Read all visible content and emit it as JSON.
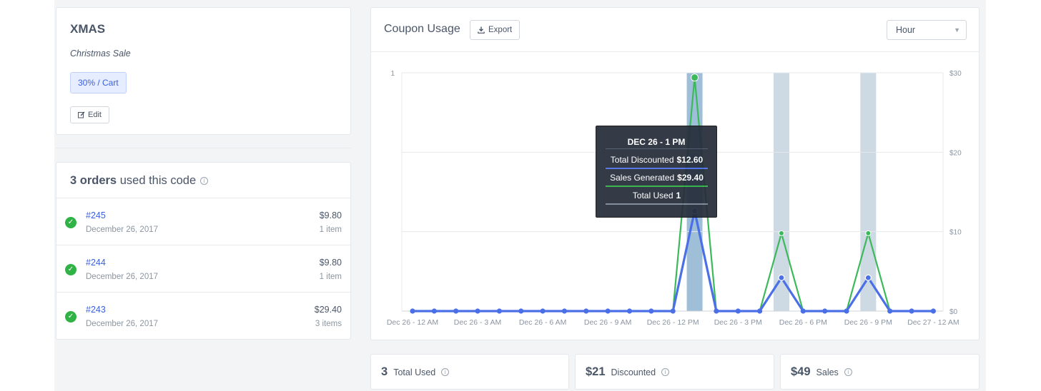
{
  "coupon": {
    "code": "XMAS",
    "description": "Christmas Sale",
    "badge": "30% / Cart",
    "edit_label": "Edit"
  },
  "orders": {
    "count": "3 orders",
    "header_suffix": "used this code",
    "items": [
      {
        "id": "#245",
        "date": "December 26, 2017",
        "amount": "$9.80",
        "items": "1 item"
      },
      {
        "id": "#244",
        "date": "December 26, 2017",
        "amount": "$9.80",
        "items": "1 item"
      },
      {
        "id": "#243",
        "date": "December 26, 2017",
        "amount": "$29.40",
        "items": "3 items"
      }
    ]
  },
  "usage": {
    "title": "Coupon Usage",
    "export_label": "Export",
    "interval": "Hour"
  },
  "tooltip": {
    "title": "DEC 26 - 1 PM",
    "rows": [
      {
        "label": "Total Discounted",
        "value": "$12.60"
      },
      {
        "label": "Sales Generated",
        "value": "$29.40"
      },
      {
        "label": "Total Used",
        "value": "1"
      }
    ]
  },
  "stats": [
    {
      "value": "3",
      "label": "Total Used"
    },
    {
      "value": "$21",
      "label": "Discounted"
    },
    {
      "value": "$49",
      "label": "Sales"
    }
  ],
  "colors": {
    "discounted": "#4b6fe6",
    "sales": "#3cb95a",
    "used_bar": "#cdd9e3",
    "used_bar_active": "#9fbfd9"
  },
  "chart_data": {
    "type": "line",
    "x_tick_labels": [
      "Dec 26 - 12 AM",
      "Dec 26 - 3 AM",
      "Dec 26 - 6 AM",
      "Dec 26 - 9 AM",
      "Dec 26 - 12 PM",
      "Dec 26 - 3 PM",
      "Dec 26 - 6 PM",
      "Dec 26 - 9 PM",
      "Dec 27 - 12 AM"
    ],
    "left_axis": {
      "ticks": [
        "1"
      ],
      "range": [
        0,
        1
      ]
    },
    "right_axis": {
      "ticks": [
        "$30",
        "$20",
        "$10",
        "$0"
      ],
      "range": [
        0,
        30
      ]
    },
    "hours": 25,
    "series": [
      {
        "name": "Total Discounted",
        "axis": "right",
        "values": [
          0,
          0,
          0,
          0,
          0,
          0,
          0,
          0,
          0,
          0,
          0,
          0,
          0,
          12.6,
          0,
          0,
          0,
          4.2,
          0,
          0,
          0,
          4.2,
          0,
          0,
          0
        ]
      },
      {
        "name": "Sales Generated",
        "axis": "right",
        "values": [
          0,
          0,
          0,
          0,
          0,
          0,
          0,
          0,
          0,
          0,
          0,
          0,
          0,
          29.4,
          0,
          0,
          0,
          9.8,
          0,
          0,
          0,
          9.8,
          0,
          0,
          0
        ]
      },
      {
        "name": "Total Used",
        "axis": "left",
        "type": "bar",
        "values": [
          0,
          0,
          0,
          0,
          0,
          0,
          0,
          0,
          0,
          0,
          0,
          0,
          0,
          1,
          0,
          0,
          0,
          1,
          0,
          0,
          0,
          1,
          0,
          0,
          0
        ]
      }
    ],
    "grid": true
  }
}
